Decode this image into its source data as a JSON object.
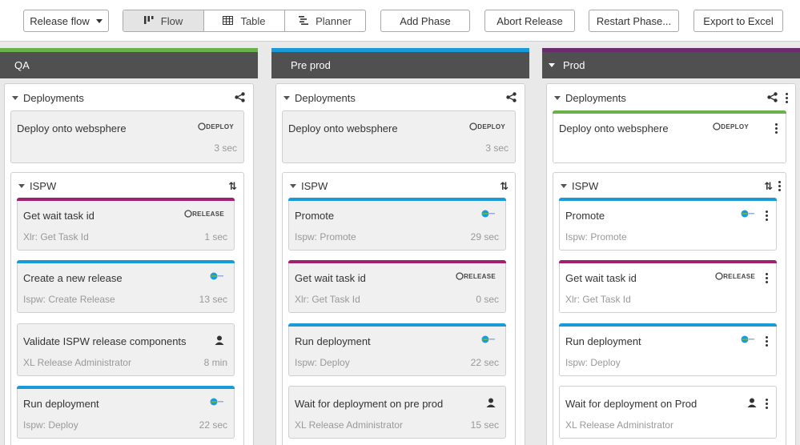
{
  "toolbar": {
    "release_flow": "Release flow",
    "view_tabs": [
      "Flow",
      "Table",
      "Planner"
    ],
    "add_phase": "Add Phase",
    "abort_release": "Abort Release",
    "restart_phase": "Restart Phase...",
    "export_excel": "Export to Excel"
  },
  "colors": {
    "qa": "#6ab04c",
    "preprod": "#1a9bd7",
    "prod": "#6b2c6e",
    "magenta": "#a0226e",
    "blue": "#1a9bd7",
    "green": "#6ab04c"
  },
  "phases": [
    {
      "name": "QA",
      "deployments": {
        "label": "Deployments",
        "task": {
          "title": "Deploy onto websphere",
          "logo": "DEPLOY",
          "time": "3 sec"
        }
      },
      "ispw": {
        "label": "ISPW",
        "tasks": [
          {
            "title": "Get wait task id",
            "sub": "Xlr: Get Task Id",
            "time": "1 sec",
            "logo": "RELEASE"
          },
          {
            "title": "Create a new release",
            "sub": "Ispw: Create Release",
            "time": "13 sec"
          },
          {
            "title": "Validate ISPW release components",
            "sub": "XL Release Administrator",
            "time": "8 min"
          },
          {
            "title": "Run deployment",
            "sub": "Ispw: Deploy",
            "time": "22 sec"
          }
        ]
      }
    },
    {
      "name": "Pre prod",
      "deployments": {
        "label": "Deployments",
        "task": {
          "title": "Deploy onto websphere",
          "logo": "DEPLOY",
          "time": "3 sec"
        }
      },
      "ispw": {
        "label": "ISPW",
        "tasks": [
          {
            "title": "Promote",
            "sub": "Ispw: Promote",
            "time": "29 sec"
          },
          {
            "title": "Get wait task id",
            "sub": "Xlr: Get Task Id",
            "time": "0 sec",
            "logo": "RELEASE"
          },
          {
            "title": "Run deployment",
            "sub": "Ispw: Deploy",
            "time": "22 sec"
          },
          {
            "title": "Wait for deployment on pre prod",
            "sub": "XL Release Administrator",
            "time": "15 sec"
          }
        ]
      }
    },
    {
      "name": "Prod",
      "deployments": {
        "label": "Deployments",
        "task": {
          "title": "Deploy onto websphere",
          "logo": "DEPLOY"
        }
      },
      "ispw": {
        "label": "ISPW",
        "tasks": [
          {
            "title": "Promote",
            "sub": "Ispw: Promote"
          },
          {
            "title": "Get wait task id",
            "sub": "Xlr: Get Task Id",
            "logo": "RELEASE"
          },
          {
            "title": "Run deployment",
            "sub": "Ispw: Deploy"
          },
          {
            "title": "Wait for deployment on Prod",
            "sub": "XL Release Administrator"
          }
        ]
      }
    }
  ]
}
